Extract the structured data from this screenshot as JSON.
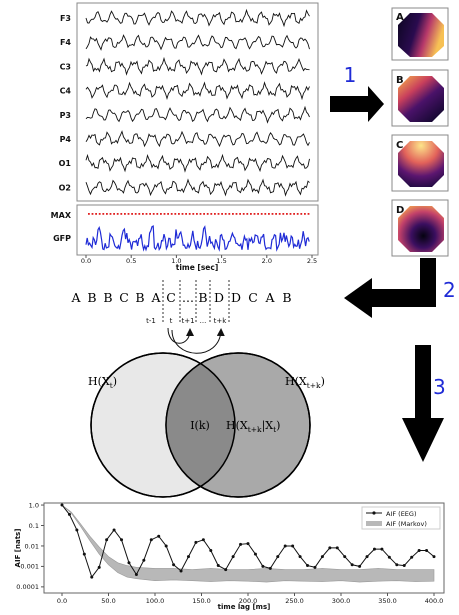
{
  "eeg_panel": {
    "channels": [
      "F3",
      "F4",
      "C3",
      "C4",
      "P3",
      "P4",
      "O1",
      "O2"
    ],
    "max_label": "MAX",
    "gfp_label": "GFP",
    "x_ticks": [
      "0.0",
      "0.5",
      "1.0",
      "1.5",
      "2.0",
      "2.5"
    ],
    "x_axis_label": "time [sec]"
  },
  "maps": {
    "labels": [
      "A",
      "B",
      "C",
      "D"
    ]
  },
  "steps": {
    "step1": "1",
    "step2": "2",
    "step3": "3",
    "color": "#1f2bd6"
  },
  "sequence": {
    "letters": [
      "A",
      "B",
      "B",
      "C",
      "B",
      "A",
      "C",
      "...",
      "B",
      "D",
      "D",
      "C",
      "A",
      "B"
    ],
    "index_labels": [
      "t-1",
      "t",
      "t+1",
      "...",
      "t+k"
    ]
  },
  "venn": {
    "left_label": "H(X",
    "left_sub": "t",
    "left_close": ")",
    "right_label": "H(X",
    "right_sub": "t+k",
    "right_close": ")",
    "center_label": "I(k)",
    "cond_label": "H(X",
    "cond_sub": "t+k",
    "cond_mid": "|X",
    "cond_sub2": "t",
    "cond_close": ")",
    "left_fill": "#e8e8e8",
    "right_fill": "#a9a9a9",
    "overlap_fill": "#8a8a8a"
  },
  "chart_data": {
    "type": "line",
    "xlabel": "time lag [ms]",
    "ylabel": "AIF [nats]",
    "x_ticks": [
      "0.0",
      "50.0",
      "100.0",
      "150.0",
      "200.0",
      "250.0",
      "300.0",
      "350.0",
      "400.0"
    ],
    "y_ticks": [
      "1.0",
      "0.1",
      "0.01",
      "0.001",
      "0.0001"
    ],
    "xlim": [
      0,
      400
    ],
    "ylim_log10": [
      -4.3,
      0.1
    ],
    "legend_position": "top-right",
    "series": [
      {
        "name": "AIF (EEG)",
        "x": [
          0,
          8,
          16,
          24,
          32,
          40,
          48,
          56,
          64,
          72,
          80,
          88,
          96,
          104,
          112,
          120,
          128,
          136,
          144,
          152,
          160,
          168,
          176,
          184,
          192,
          200,
          208,
          216,
          224,
          232,
          240,
          248,
          256,
          264,
          272,
          280,
          288,
          296,
          304,
          312,
          320,
          328,
          336,
          344,
          352,
          360,
          368,
          376,
          384,
          392,
          400
        ],
        "y": [
          1.0,
          0.35,
          0.06,
          0.004,
          0.0003,
          0.0009,
          0.02,
          0.06,
          0.02,
          0.0015,
          0.0004,
          0.002,
          0.02,
          0.03,
          0.01,
          0.0012,
          0.0006,
          0.003,
          0.015,
          0.02,
          0.006,
          0.0011,
          0.0007,
          0.003,
          0.012,
          0.013,
          0.004,
          0.001,
          0.0008,
          0.003,
          0.01,
          0.01,
          0.003,
          0.0011,
          0.0009,
          0.003,
          0.008,
          0.008,
          0.003,
          0.0012,
          0.001,
          0.003,
          0.007,
          0.007,
          0.0028,
          0.0012,
          0.0011,
          0.0028,
          0.006,
          0.006,
          0.003
        ]
      },
      {
        "name": "AIF (Markov)",
        "x": [
          0,
          10,
          20,
          30,
          40,
          50,
          60,
          70,
          80,
          100,
          120,
          140,
          160,
          180,
          200,
          220,
          240,
          260,
          280,
          300,
          320,
          340,
          360,
          380,
          400
        ],
        "upper": [
          1.0,
          0.45,
          0.12,
          0.03,
          0.009,
          0.003,
          0.0015,
          0.0011,
          0.0009,
          0.0008,
          0.0008,
          0.0007,
          0.0008,
          0.0007,
          0.0007,
          0.0008,
          0.0007,
          0.0007,
          0.0008,
          0.0007,
          0.0007,
          0.0008,
          0.0007,
          0.0007,
          0.0007
        ],
        "lower": [
          1.0,
          0.4,
          0.09,
          0.018,
          0.004,
          0.0012,
          0.0005,
          0.0003,
          0.00025,
          0.0002,
          0.00022,
          0.0002,
          0.00018,
          0.0002,
          0.00019,
          0.00017,
          0.0002,
          0.00019,
          0.00018,
          0.0002,
          0.00017,
          0.00019,
          0.0002,
          0.00018,
          0.00019
        ]
      }
    ]
  }
}
